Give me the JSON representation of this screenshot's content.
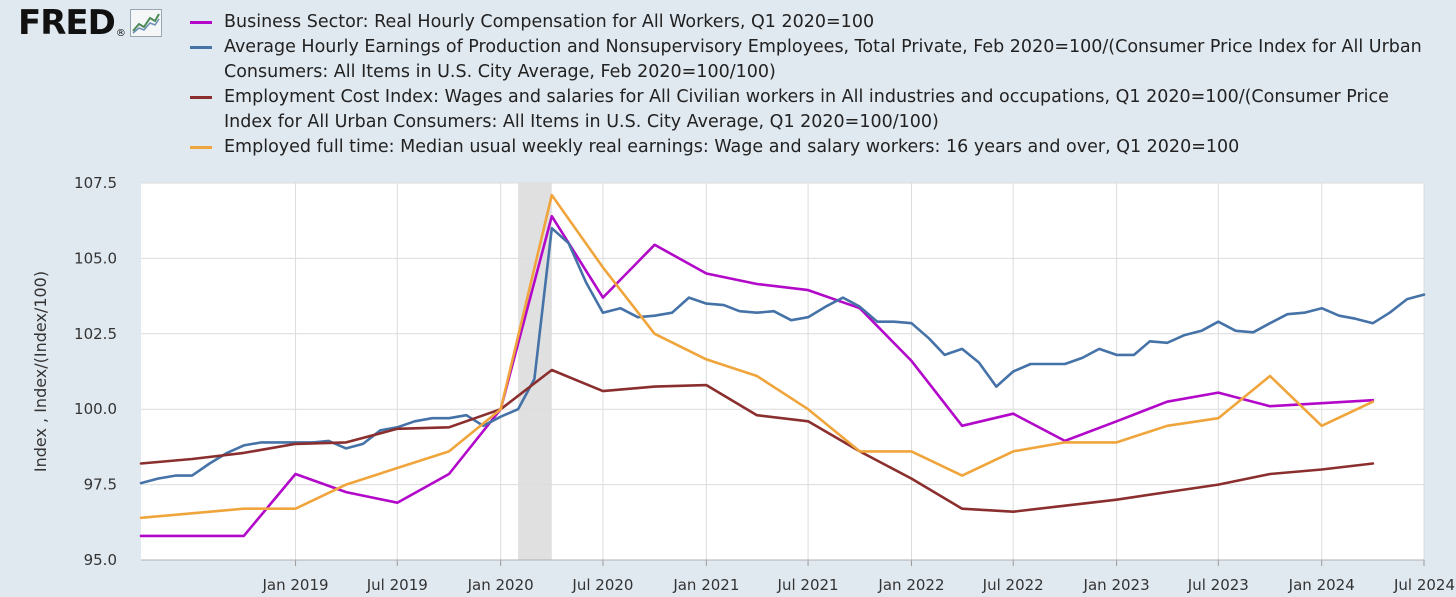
{
  "logo": {
    "text": "FRED",
    "reg": "®"
  },
  "chart_data": {
    "type": "line",
    "title": "",
    "xlabel": "",
    "ylabel": "Index , Index/(Index/100)",
    "ylim": [
      95.0,
      107.5
    ],
    "xlim": [
      "2018-04-01",
      "2024-07-01"
    ],
    "y_ticks": [
      "95.0",
      "97.5",
      "100.0",
      "102.5",
      "105.0",
      "107.5"
    ],
    "x_ticks": [
      {
        "date": "2019-01-01",
        "label": "Jan 2019"
      },
      {
        "date": "2019-07-01",
        "label": "Jul 2019"
      },
      {
        "date": "2020-01-01",
        "label": "Jan 2020"
      },
      {
        "date": "2020-07-01",
        "label": "Jul 2020"
      },
      {
        "date": "2021-01-01",
        "label": "Jan 2021"
      },
      {
        "date": "2021-07-01",
        "label": "Jul 2021"
      },
      {
        "date": "2022-01-01",
        "label": "Jan 2022"
      },
      {
        "date": "2022-07-01",
        "label": "Jul 2022"
      },
      {
        "date": "2023-01-01",
        "label": "Jan 2023"
      },
      {
        "date": "2023-07-01",
        "label": "Jul 2023"
      },
      {
        "date": "2024-01-01",
        "label": "Jan 2024"
      },
      {
        "date": "2024-07-01",
        "label": "Jul 2024"
      }
    ],
    "grid": true,
    "legend_position": "top",
    "recession": {
      "start": "2020-02-01",
      "end": "2020-04-01"
    },
    "series": [
      {
        "name": "Business Sector: Real Hourly Compensation for All Workers, Q1 2020=100",
        "color": "#b208c9",
        "points": [
          [
            "2018-04-01",
            95.8
          ],
          [
            "2018-07-01",
            95.8
          ],
          [
            "2018-10-01",
            95.8
          ],
          [
            "2019-01-01",
            97.85
          ],
          [
            "2019-04-01",
            97.25
          ],
          [
            "2019-07-01",
            96.9
          ],
          [
            "2019-10-01",
            97.85
          ],
          [
            "2020-01-01",
            100.0
          ],
          [
            "2020-04-01",
            106.4
          ],
          [
            "2020-07-01",
            103.7
          ],
          [
            "2020-10-01",
            105.45
          ],
          [
            "2021-01-01",
            104.5
          ],
          [
            "2021-04-01",
            104.15
          ],
          [
            "2021-07-01",
            103.95
          ],
          [
            "2021-10-01",
            103.35
          ],
          [
            "2022-01-01",
            101.6
          ],
          [
            "2022-04-01",
            99.45
          ],
          [
            "2022-07-01",
            99.85
          ],
          [
            "2022-10-01",
            98.95
          ],
          [
            "2023-01-01",
            99.6
          ],
          [
            "2023-04-01",
            100.25
          ],
          [
            "2023-07-01",
            100.55
          ],
          [
            "2023-10-01",
            100.1
          ],
          [
            "2024-01-01",
            100.2
          ],
          [
            "2024-04-01",
            100.3
          ]
        ]
      },
      {
        "name": "Average Hourly Earnings of Production and Nonsupervisory Employees, Total Private, Feb 2020=100/(Consumer Price Index for All Urban Consumers: All Items in U.S. City Average, Feb 2020=100/100)",
        "color": "#4572a7",
        "points": [
          [
            "2018-04-01",
            97.55
          ],
          [
            "2018-05-01",
            97.7
          ],
          [
            "2018-06-01",
            97.8
          ],
          [
            "2018-07-01",
            97.8
          ],
          [
            "2018-08-01",
            98.2
          ],
          [
            "2018-09-01",
            98.55
          ],
          [
            "2018-10-01",
            98.8
          ],
          [
            "2018-11-01",
            98.9
          ],
          [
            "2018-12-01",
            98.9
          ],
          [
            "2019-01-01",
            98.9
          ],
          [
            "2019-02-01",
            98.9
          ],
          [
            "2019-03-01",
            98.95
          ],
          [
            "2019-04-01",
            98.7
          ],
          [
            "2019-05-01",
            98.85
          ],
          [
            "2019-06-01",
            99.3
          ],
          [
            "2019-07-01",
            99.4
          ],
          [
            "2019-08-01",
            99.6
          ],
          [
            "2019-09-01",
            99.7
          ],
          [
            "2019-10-01",
            99.7
          ],
          [
            "2019-11-01",
            99.8
          ],
          [
            "2019-12-01",
            99.45
          ],
          [
            "2020-01-01",
            99.75
          ],
          [
            "2020-02-01",
            100.0
          ],
          [
            "2020-03-01",
            101.0
          ],
          [
            "2020-04-01",
            106.0
          ],
          [
            "2020-05-01",
            105.5
          ],
          [
            "2020-06-01",
            104.2
          ],
          [
            "2020-07-01",
            103.2
          ],
          [
            "2020-08-01",
            103.35
          ],
          [
            "2020-09-01",
            103.05
          ],
          [
            "2020-10-01",
            103.1
          ],
          [
            "2020-11-01",
            103.2
          ],
          [
            "2020-12-01",
            103.7
          ],
          [
            "2021-01-01",
            103.5
          ],
          [
            "2021-02-01",
            103.45
          ],
          [
            "2021-03-01",
            103.25
          ],
          [
            "2021-04-01",
            103.2
          ],
          [
            "2021-05-01",
            103.25
          ],
          [
            "2021-06-01",
            102.95
          ],
          [
            "2021-07-01",
            103.05
          ],
          [
            "2021-08-01",
            103.4
          ],
          [
            "2021-09-01",
            103.7
          ],
          [
            "2021-10-01",
            103.4
          ],
          [
            "2021-11-01",
            102.9
          ],
          [
            "2021-12-01",
            102.9
          ],
          [
            "2022-01-01",
            102.85
          ],
          [
            "2022-02-01",
            102.35
          ],
          [
            "2022-03-01",
            101.8
          ],
          [
            "2022-04-01",
            102.0
          ],
          [
            "2022-05-01",
            101.55
          ],
          [
            "2022-06-01",
            100.75
          ],
          [
            "2022-07-01",
            101.25
          ],
          [
            "2022-08-01",
            101.5
          ],
          [
            "2022-09-01",
            101.5
          ],
          [
            "2022-10-01",
            101.5
          ],
          [
            "2022-11-01",
            101.7
          ],
          [
            "2022-12-01",
            102.0
          ],
          [
            "2023-01-01",
            101.8
          ],
          [
            "2023-02-01",
            101.8
          ],
          [
            "2023-03-01",
            102.25
          ],
          [
            "2023-04-01",
            102.2
          ],
          [
            "2023-05-01",
            102.45
          ],
          [
            "2023-06-01",
            102.6
          ],
          [
            "2023-07-01",
            102.9
          ],
          [
            "2023-08-01",
            102.6
          ],
          [
            "2023-09-01",
            102.55
          ],
          [
            "2023-10-01",
            102.85
          ],
          [
            "2023-11-01",
            103.15
          ],
          [
            "2023-12-01",
            103.2
          ],
          [
            "2024-01-01",
            103.35
          ],
          [
            "2024-02-01",
            103.1
          ],
          [
            "2024-03-01",
            103.0
          ],
          [
            "2024-04-01",
            102.85
          ],
          [
            "2024-05-01",
            103.2
          ],
          [
            "2024-06-01",
            103.65
          ],
          [
            "2024-07-01",
            103.8
          ]
        ]
      },
      {
        "name": "Employment Cost Index: Wages and salaries for All Civilian workers in All industries and occupations, Q1 2020=100/(Consumer Price Index for All Urban Consumers: All Items in U.S. City Average, Q1 2020=100/100)",
        "color": "#8b2e2e",
        "points": [
          [
            "2018-04-01",
            98.2
          ],
          [
            "2018-07-01",
            98.35
          ],
          [
            "2018-10-01",
            98.55
          ],
          [
            "2019-01-01",
            98.85
          ],
          [
            "2019-04-01",
            98.9
          ],
          [
            "2019-07-01",
            99.35
          ],
          [
            "2019-10-01",
            99.4
          ],
          [
            "2020-01-01",
            100.0
          ],
          [
            "2020-04-01",
            101.3
          ],
          [
            "2020-07-01",
            100.6
          ],
          [
            "2020-10-01",
            100.75
          ],
          [
            "2021-01-01",
            100.8
          ],
          [
            "2021-04-01",
            99.8
          ],
          [
            "2021-07-01",
            99.6
          ],
          [
            "2021-10-01",
            98.6
          ],
          [
            "2022-01-01",
            97.7
          ],
          [
            "2022-04-01",
            96.7
          ],
          [
            "2022-07-01",
            96.6
          ],
          [
            "2022-10-01",
            96.8
          ],
          [
            "2023-01-01",
            97.0
          ],
          [
            "2023-04-01",
            97.25
          ],
          [
            "2023-07-01",
            97.5
          ],
          [
            "2023-10-01",
            97.85
          ],
          [
            "2024-01-01",
            98.0
          ],
          [
            "2024-04-01",
            98.2
          ]
        ]
      },
      {
        "name": "Employed full time: Median usual weekly real earnings: Wage and salary workers: 16 years and over, Q1 2020=100",
        "color": "#f0a53c",
        "points": [
          [
            "2018-04-01",
            96.4
          ],
          [
            "2018-07-01",
            96.55
          ],
          [
            "2018-10-01",
            96.7
          ],
          [
            "2019-01-01",
            96.7
          ],
          [
            "2019-04-01",
            97.5
          ],
          [
            "2019-07-01",
            98.05
          ],
          [
            "2019-10-01",
            98.6
          ],
          [
            "2020-01-01",
            100.0
          ],
          [
            "2020-04-01",
            107.1
          ],
          [
            "2020-07-01",
            104.7
          ],
          [
            "2020-10-01",
            102.5
          ],
          [
            "2021-01-01",
            101.65
          ],
          [
            "2021-04-01",
            101.1
          ],
          [
            "2021-07-01",
            100.0
          ],
          [
            "2021-10-01",
            98.6
          ],
          [
            "2022-01-01",
            98.6
          ],
          [
            "2022-04-01",
            97.8
          ],
          [
            "2022-07-01",
            98.6
          ],
          [
            "2022-10-01",
            98.9
          ],
          [
            "2023-01-01",
            98.9
          ],
          [
            "2023-04-01",
            99.45
          ],
          [
            "2023-07-01",
            99.7
          ],
          [
            "2023-10-01",
            101.1
          ],
          [
            "2024-01-01",
            99.45
          ],
          [
            "2024-04-01",
            100.25
          ]
        ]
      }
    ]
  }
}
